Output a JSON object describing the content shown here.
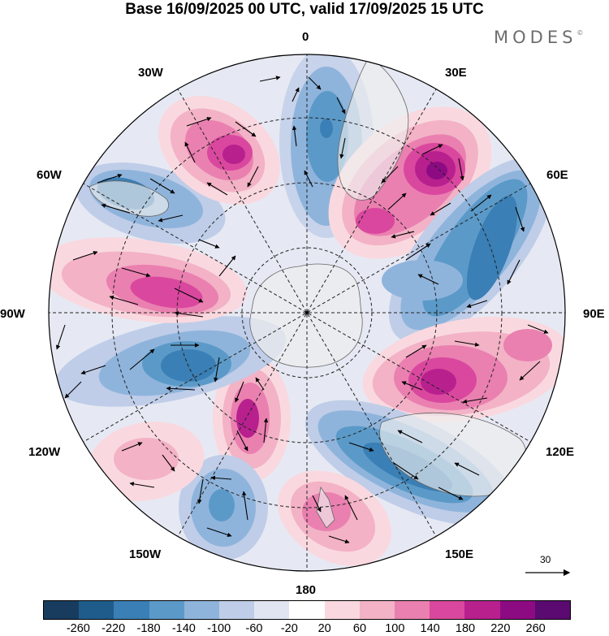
{
  "title": "Base 16/09/2025 00 UTC, valid 17/09/2025 15 UTC",
  "brand": "MODES",
  "brand_mark": "©",
  "longitude_labels": {
    "lon_0": "0",
    "lon_30e": "30E",
    "lon_60e": "60E",
    "lon_90e": "90E",
    "lon_120e": "120E",
    "lon_150e": "150E",
    "lon_180": "180",
    "lon_150w": "150W",
    "lon_120w": "120W",
    "lon_90w": "90W",
    "lon_60w": "60W",
    "lon_30w": "30W"
  },
  "reference_vector": "30",
  "colorbar": {
    "colors": [
      "#183c5e",
      "#1f5c8c",
      "#3a7fb5",
      "#5b9ac8",
      "#8fb4dc",
      "#bfcde8",
      "#e1e5f2",
      "#ffffff",
      "#f9d9df",
      "#f3b2c6",
      "#ea80b0",
      "#d9489e",
      "#b8208e",
      "#8d0b82",
      "#5a0a70"
    ],
    "tick_labels": [
      "-260",
      "-220",
      "-180",
      "-140",
      "-100",
      "-60",
      "-20",
      "20",
      "60",
      "100",
      "140",
      "180",
      "220",
      "260"
    ]
  }
}
